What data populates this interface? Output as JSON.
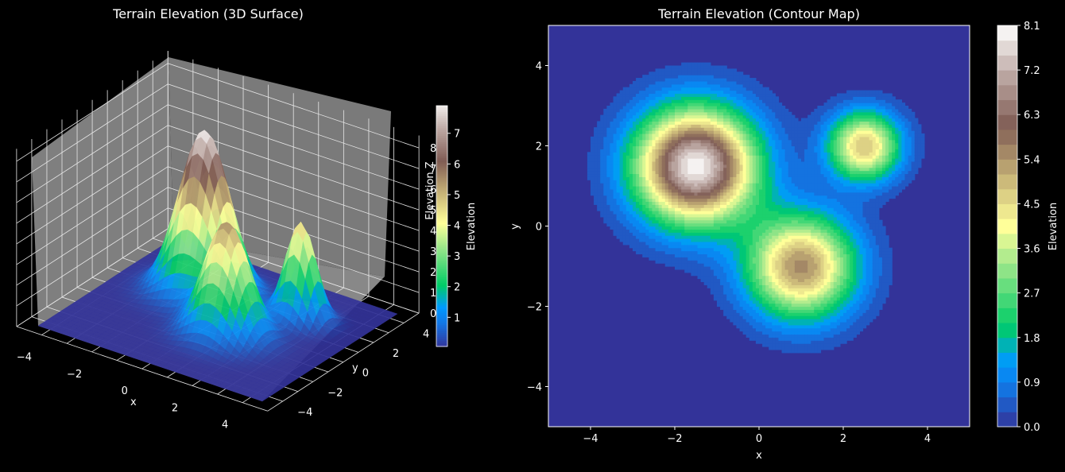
{
  "chart_data": [
    {
      "type": "surface3d",
      "title": "Terrain Elevation (3D Surface)",
      "xlabel": "x",
      "ylabel": "y",
      "zlabel": "Elevation Z",
      "xlim": [
        -5,
        5
      ],
      "ylim": [
        -5,
        5
      ],
      "zlim": [
        0,
        8
      ],
      "xticks": [
        "−4",
        "−2",
        "0",
        "2",
        "4"
      ],
      "yticks": [
        "−4",
        "−2",
        "0",
        "2",
        "4"
      ],
      "zticks": [
        "0",
        "1",
        "2",
        "3",
        "4",
        "5",
        "6",
        "7",
        "8"
      ],
      "colormap": "terrain",
      "pane_color": "#7a7a7a",
      "colorbar": {
        "label": "Elevation",
        "range": [
          0.05,
          7.9
        ],
        "ticks": [
          "1",
          "2",
          "3",
          "4",
          "5",
          "6",
          "7"
        ]
      }
    },
    {
      "type": "contourf",
      "title": "Terrain Elevation (Contour Map)",
      "xlabel": "x",
      "ylabel": "y",
      "xlim": [
        -5,
        5
      ],
      "ylim": [
        -5,
        5
      ],
      "xticks": [
        "−4",
        "−2",
        "0",
        "2",
        "4"
      ],
      "yticks": [
        "−4",
        "−2",
        "0",
        "2",
        "4"
      ],
      "levels": [
        0.0,
        0.3,
        0.6,
        0.9,
        1.2,
        1.5,
        1.8,
        2.1,
        2.4,
        2.7,
        3.0,
        3.3,
        3.6,
        3.9,
        4.2,
        4.5,
        4.8,
        5.1,
        5.4,
        5.7,
        6.0,
        6.3,
        6.6,
        6.9,
        7.2,
        7.5,
        7.8,
        8.1
      ],
      "colorbar": {
        "label": "Elevation",
        "ticks": [
          "0.0",
          "0.9",
          "1.8",
          "2.7",
          "3.6",
          "4.5",
          "5.4",
          "6.3",
          "7.2",
          "8.1"
        ]
      },
      "peaks": [
        {
          "x": -1.5,
          "y": 1.5,
          "height": 8.0,
          "spread": 1.0
        },
        {
          "x": 1.0,
          "y": -1.0,
          "height": 5.5,
          "spread": 0.9
        },
        {
          "x": 2.5,
          "y": 2.0,
          "height": 4.8,
          "spread": 0.6
        }
      ]
    }
  ]
}
